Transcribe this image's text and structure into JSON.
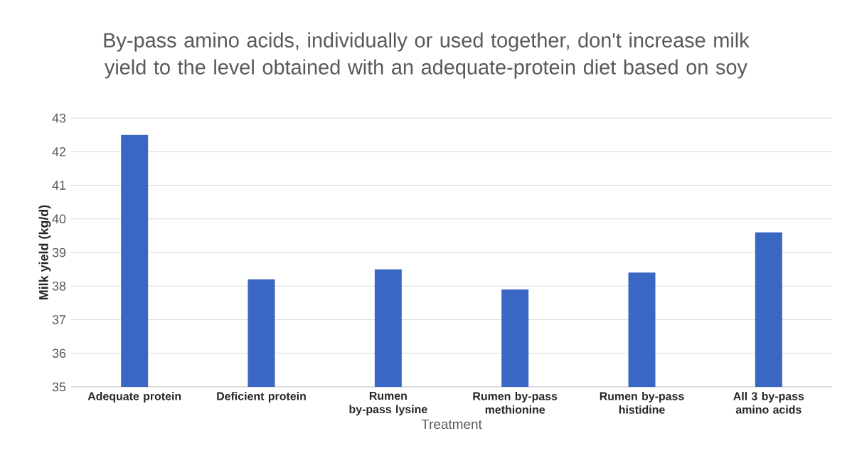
{
  "chart_data": {
    "type": "bar",
    "title": "By-pass amino acids, individually or used together, don't increase milk yield to the level obtained with an adequate-protein diet based on soy",
    "xlabel": "Treatment",
    "ylabel": "Milk yield (kg/d)",
    "categories": [
      "Adequate protein",
      "Deficient protein",
      "Rumen by-pass lysine",
      "Rumen by-pass methionine",
      "Rumen by-pass histidine",
      "All 3 by-pass amino acids"
    ],
    "values": [
      42.5,
      38.2,
      38.5,
      37.9,
      38.4,
      39.6
    ],
    "color": "#3a66c4",
    "ylim": [
      35,
      43
    ],
    "yticks": [
      35,
      36,
      37,
      38,
      39,
      40,
      41,
      42,
      43
    ],
    "grid": "y"
  }
}
